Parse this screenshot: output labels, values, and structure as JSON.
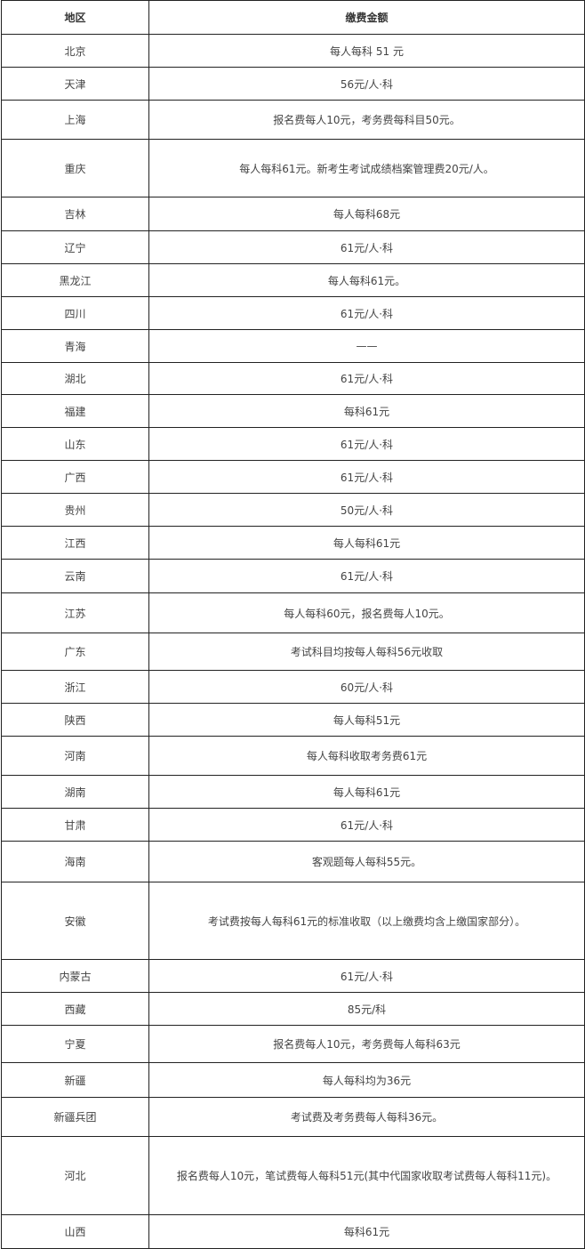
{
  "table": {
    "headers": [
      "地区",
      "缴费金额"
    ],
    "rows": [
      [
        "北京",
        "每人每科 51 元"
      ],
      [
        "天津",
        "56元/人·科"
      ],
      [
        "上海",
        "报名费每人10元，考务费每科目50元。"
      ],
      [
        "重庆",
        "每人每科61元。新考生考试成绩档案管理费20元/人。"
      ],
      [
        "吉林",
        "每人每科68元"
      ],
      [
        "辽宁",
        "61元/人·科"
      ],
      [
        "黑龙江",
        "每人每科61元。"
      ],
      [
        "四川",
        "61元/人·科"
      ],
      [
        "青海",
        "——"
      ],
      [
        "湖北",
        "61元/人·科"
      ],
      [
        "福建",
        "每科61元"
      ],
      [
        "山东",
        "61元/人·科"
      ],
      [
        "广西",
        "61元/人·科"
      ],
      [
        "贵州",
        "50元/人·科"
      ],
      [
        "江西",
        "每人每科61元"
      ],
      [
        "云南",
        "61元/人·科"
      ],
      [
        "江苏",
        "每人每科60元，报名费每人10元。"
      ],
      [
        "广东",
        "考试科目均按每人每科56元收取"
      ],
      [
        "浙江",
        "60元/人·科"
      ],
      [
        "陕西",
        "每人每科51元"
      ],
      [
        "河南",
        "每人每科收取考务费61元"
      ],
      [
        "湖南",
        "每人每科61元"
      ],
      [
        "甘肃",
        "61元/人·科"
      ],
      [
        "海南",
        "客观题每人每科55元。"
      ],
      [
        "安徽",
        "考试费按每人每科61元的标准收取（以上缴费均含上缴国家部分）。"
      ],
      [
        "内蒙古",
        "61元/人·科"
      ],
      [
        "西藏",
        "85元/科"
      ],
      [
        "宁夏",
        "报名费每人10元，考务费每人每科63元"
      ],
      [
        "新疆",
        "每人每科均为36元"
      ],
      [
        "新疆兵团",
        "考试费及考务费每人每科36元。"
      ],
      [
        "河北",
        "报名费每人10元，笔试费每人每科51元(其中代国家收取考试费每人每科11元)。"
      ],
      [
        "山西",
        "每科61元"
      ]
    ]
  }
}
